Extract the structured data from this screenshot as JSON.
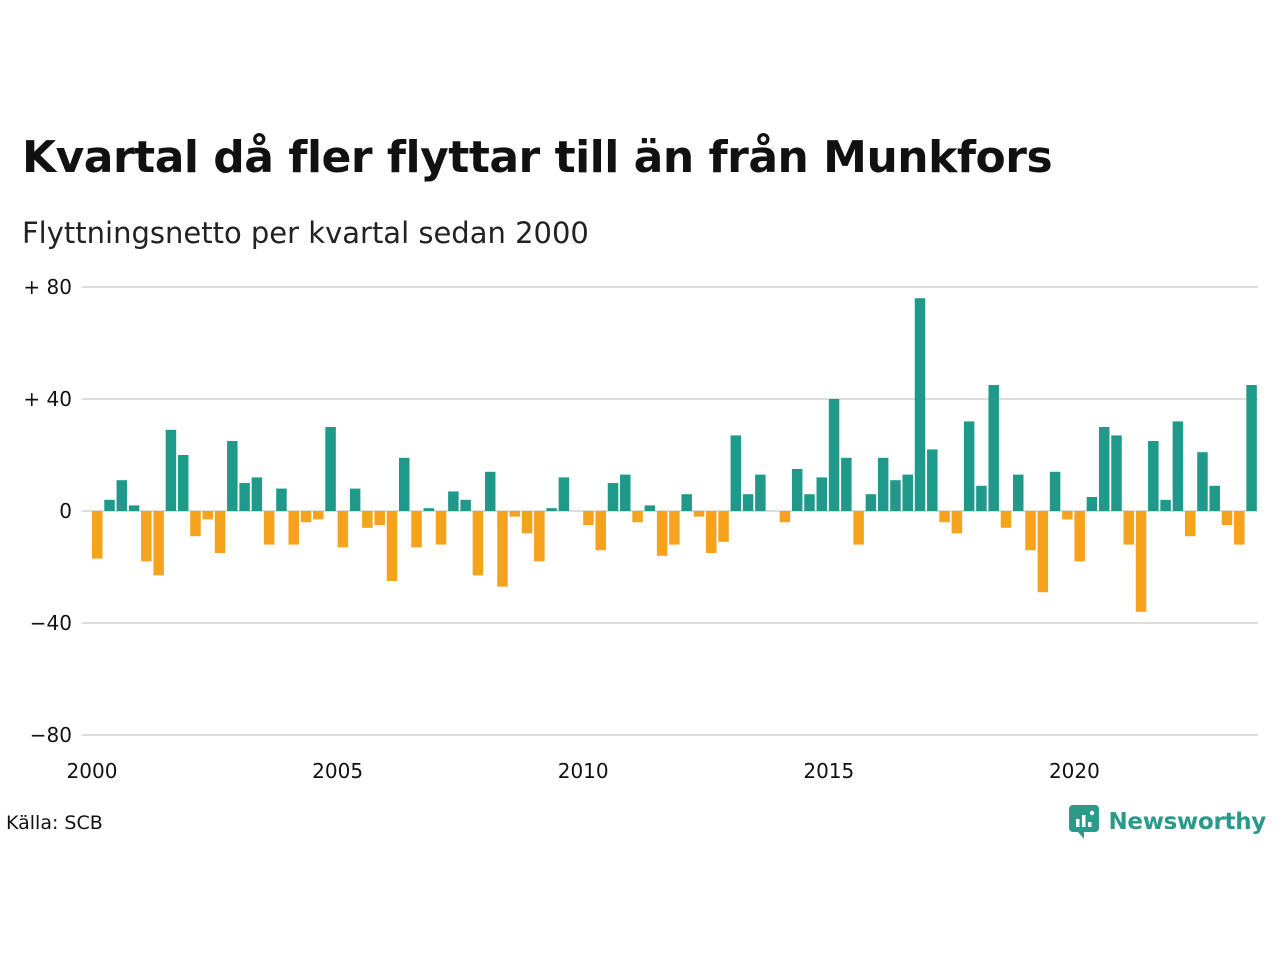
{
  "title": "Kvartal då fler flyttar till än från Munkfors",
  "subtitle": "Flyttningsnetto per kvartal sedan 2000",
  "source": "Källa: SCB",
  "brand": "Newsworthy",
  "colors": {
    "positive": "#1f9a8a",
    "negative": "#f5a21d",
    "grid": "#dddddd",
    "brand": "#2a9a8a"
  },
  "chart_data": {
    "type": "bar",
    "x_start": "2000 Q1",
    "frequency": "quarterly",
    "y_ticks": [
      {
        "value": 80,
        "label": "+ 80"
      },
      {
        "value": 40,
        "label": "+ 40"
      },
      {
        "value": 0,
        "label": "0"
      },
      {
        "value": -40,
        "label": "−40"
      },
      {
        "value": -80,
        "label": "−80"
      }
    ],
    "x_ticks": [
      "2000",
      "2005",
      "2010",
      "2015",
      "2020"
    ],
    "ylim": [
      -80,
      80
    ],
    "grid": true,
    "values": [
      -17,
      4,
      11,
      2,
      -18,
      -23,
      29,
      20,
      -9,
      -3,
      -15,
      25,
      10,
      12,
      -12,
      8,
      -12,
      -4,
      -3,
      30,
      -13,
      8,
      -6,
      -5,
      -25,
      19,
      -13,
      1,
      -12,
      7,
      4,
      -23,
      14,
      -27,
      -2,
      -8,
      -18,
      1,
      12,
      0,
      -5,
      -14,
      10,
      13,
      -4,
      2,
      -16,
      -12,
      6,
      -2,
      -15,
      -11,
      27,
      6,
      13,
      0,
      -4,
      15,
      6,
      12,
      40,
      19,
      -12,
      6,
      19,
      11,
      13,
      76,
      22,
      -4,
      -8,
      32,
      9,
      45,
      -6,
      13,
      -14,
      -29,
      14,
      -3,
      -18,
      5,
      30,
      27,
      -12,
      -36,
      25,
      4,
      32,
      -9,
      21,
      9,
      -5,
      -12,
      45
    ]
  }
}
